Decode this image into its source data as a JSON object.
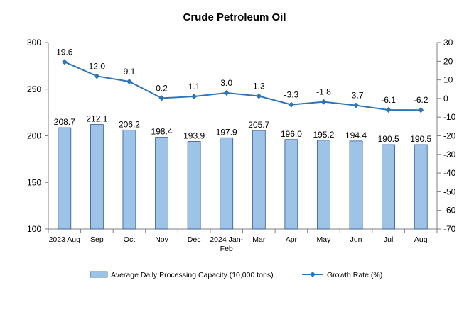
{
  "chart_data": {
    "type": "bar+line",
    "title": "Crude Petroleum Oil",
    "categories": [
      [
        "2023 Aug"
      ],
      [
        "Sep"
      ],
      [
        "Oct"
      ],
      [
        "Nov"
      ],
      [
        "Dec"
      ],
      [
        "2024 Jan-",
        "Feb"
      ],
      [
        "Mar"
      ],
      [
        "Apr"
      ],
      [
        "May"
      ],
      [
        "Jun"
      ],
      [
        "Jul"
      ],
      [
        "Aug"
      ]
    ],
    "series": [
      {
        "name": "Average Daily Processing Capacity (10,000 tons)",
        "type": "bar",
        "axis": "left",
        "values": [
          208.7,
          212.1,
          206.2,
          198.4,
          193.9,
          197.9,
          205.7,
          196.0,
          195.2,
          194.4,
          190.5,
          190.5
        ],
        "labels": [
          "208.7",
          "212.1",
          "206.2",
          "198.4",
          "193.9",
          "197.9",
          "205.7",
          "196.0",
          "195.2",
          "194.4",
          "190.5",
          "190.5"
        ],
        "color": "#9dc3e6",
        "border": "#2f5597"
      },
      {
        "name": "Growth Rate (%)",
        "type": "line",
        "axis": "right",
        "values": [
          19.6,
          12.0,
          9.1,
          0.2,
          1.1,
          3.0,
          1.3,
          -3.3,
          -1.8,
          -3.7,
          -6.1,
          -6.2
        ],
        "labels": [
          "19.6",
          "12.0",
          "9.1",
          "0.2",
          "1.1",
          "3.0",
          "1.3",
          "-3.3",
          "-1.8",
          "-3.7",
          "-6.1",
          "-6.2"
        ],
        "color": "#2e75b6"
      }
    ],
    "y_left": {
      "min": 100,
      "max": 300,
      "ticks": [
        "100",
        "150",
        "200",
        "250",
        "300"
      ],
      "tick_values": [
        100,
        150,
        200,
        250,
        300
      ]
    },
    "y_right": {
      "min": -70,
      "max": 30,
      "ticks": [
        "-70",
        "-60",
        "-50",
        "-40",
        "-30",
        "-20",
        "-10",
        "0",
        "10",
        "20",
        "30"
      ],
      "tick_values": [
        -70,
        -60,
        -50,
        -40,
        -30,
        -20,
        -10,
        0,
        10,
        20,
        30
      ]
    },
    "grid": false,
    "legend_position": "bottom"
  }
}
